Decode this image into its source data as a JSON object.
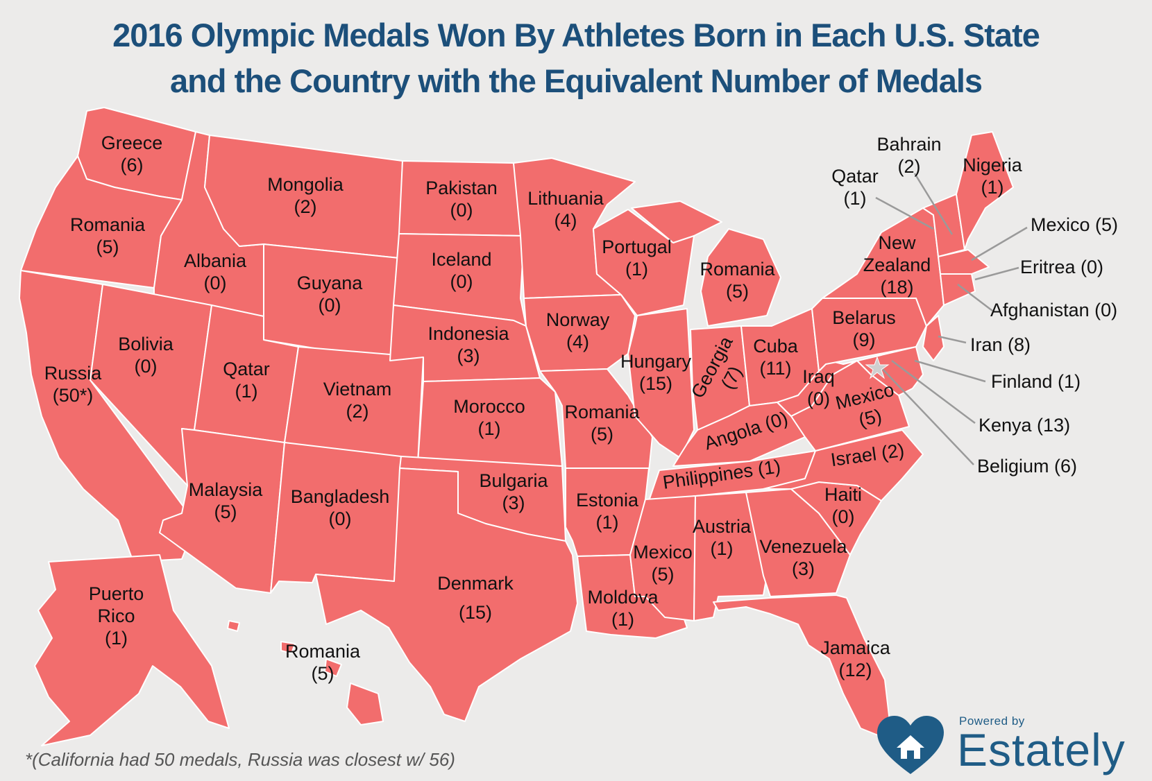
{
  "title": {
    "line1": "2016 Olympic Medals Won By Athletes Born in Each U.S. State",
    "line2": "and the Country with the Equivalent Number of Medals"
  },
  "colors": {
    "state_fill": "#f26d6d",
    "title": "#1c4f7a",
    "background": "#ecebea",
    "brand": "#1f5c86"
  },
  "labels": {
    "wa": {
      "name": "Greece",
      "value": "(6)"
    },
    "or": {
      "name": "Romania",
      "value": "(5)"
    },
    "ca": {
      "name": "Russia",
      "value": "(50*)"
    },
    "id": {
      "name": "Albania",
      "value": "(0)"
    },
    "nv": {
      "name": "Bolivia",
      "value": "(0)"
    },
    "mt": {
      "name": "Mongolia",
      "value": "(2)"
    },
    "wy": {
      "name": "Guyana",
      "value": "(0)"
    },
    "ut": {
      "name": "Qatar",
      "value": "(1)"
    },
    "co": {
      "name": "Vietnam",
      "value": "(2)"
    },
    "az": {
      "name": "Malaysia",
      "value": "(5)"
    },
    "nm": {
      "name": "Bangladesh",
      "value": "(0)"
    },
    "nd": {
      "name": "Pakistan",
      "value": "(0)"
    },
    "sd": {
      "name": "Iceland",
      "value": "(0)"
    },
    "ne": {
      "name": "Indonesia",
      "value": "(3)"
    },
    "ks": {
      "name": "Morocco",
      "value": "(1)"
    },
    "ok": {
      "name": "Bulgaria",
      "value": "(3)"
    },
    "tx": {
      "name": "Denmark",
      "value": "(15)"
    },
    "mn": {
      "name": "Lithuania",
      "value": "(4)"
    },
    "ia": {
      "name": "Norway",
      "value": "(4)"
    },
    "mo": {
      "name": "Romania",
      "value": "(5)"
    },
    "ar": {
      "name": "Estonia",
      "value": "(1)"
    },
    "la": {
      "name": "Moldova",
      "value": "(1)"
    },
    "wi": {
      "name": "Portugal",
      "value": "(1)"
    },
    "il": {
      "name": "Hungary",
      "value": "(15)"
    },
    "mi": {
      "name": "Romania",
      "value": "(5)"
    },
    "in": {
      "name": "Georgia",
      "value": "(7)"
    },
    "oh": {
      "name": "Cuba",
      "value": "(11)"
    },
    "ky": {
      "name": "Angola (0)",
      "value": ""
    },
    "tn": {
      "name": "Philippines (1)",
      "value": ""
    },
    "ms": {
      "name": "Mexico",
      "value": "(5)"
    },
    "al": {
      "name": "Austria",
      "value": "(1)"
    },
    "ga": {
      "name": "Venezuela",
      "value": "(3)"
    },
    "fl": {
      "name": "Jamaica",
      "value": "(12)"
    },
    "sc": {
      "name": "Haiti",
      "value": "(0)"
    },
    "nc": {
      "name": "Israel (2)",
      "value": ""
    },
    "va": {
      "name": "Mexico",
      "value": "(5)"
    },
    "wv": {
      "name": "Iraq",
      "value": "(0)"
    },
    "pa": {
      "name": "Belarus",
      "value": "(9)"
    },
    "ny": {
      "name": "New",
      "name2": "Zealand",
      "value": "(18)"
    },
    "me": {
      "name": "Nigeria",
      "value": "(1)"
    },
    "vt": {
      "name": "Qatar",
      "value": "(1)"
    },
    "nh": {
      "name": "Bahrain",
      "value": "(2)"
    },
    "ak": {
      "name": "Puerto",
      "name2": "Rico",
      "value": "(1)"
    },
    "hi": {
      "name": "Romania",
      "value": "(5)"
    }
  },
  "callouts": {
    "ma": "Mexico (5)",
    "ri": "Eritrea (0)",
    "ct": "Afghanistan (0)",
    "nj": "Iran (8)",
    "de": "Finland (1)",
    "md": "Kenya (13)",
    "dc": "Beligium (6)"
  },
  "footnote": "*(California had 50 medals, Russia was closest w/ 56)",
  "brand": {
    "powered_by": "Powered by",
    "name": "Estately"
  }
}
